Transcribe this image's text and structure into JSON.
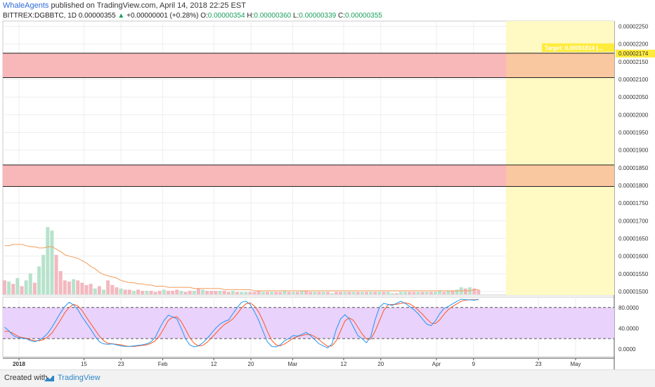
{
  "header": {
    "author": "WhaleAgents",
    "published": "published on TradingView.com, April 14, 2018 22:25 EST",
    "symbol": "BITTREX:DGBBTC, 1D",
    "last": "0.00000355",
    "change_arrow": "▲",
    "change": "+0.00000001 (+0.28%)",
    "o_label": "O:",
    "o_value": "0.00000354",
    "h_label": "H:",
    "h_value": "0.00000360",
    "l_label": "L:",
    "l_value": "0.00000339",
    "c_label": "C:",
    "c_value": "0.00000355"
  },
  "footer": {
    "created_with": "Created with",
    "brand": "TradingView"
  },
  "chart_data": {
    "type": "bar",
    "price_axis": {
      "ticks": [
        "0.00002250",
        "0.00002200",
        "0.00002150",
        "0.00002100",
        "0.00002050",
        "0.00002000",
        "0.00001950",
        "0.00001900",
        "0.00001850",
        "0.00001800",
        "0.00001750",
        "0.00001700",
        "0.00001650",
        "0.00001600",
        "0.00001550",
        "0.00001500"
      ],
      "range": [
        1.49e-05,
        2.265e-05
      ]
    },
    "zones": [
      {
        "name": "upper-resistance",
        "from": 2.105e-05,
        "to": 2.174e-05,
        "color": "#f8b7b9"
      },
      {
        "name": "lower-resistance",
        "from": 1.797e-05,
        "to": 1.858e-05,
        "color": "#f8b7b9"
      }
    ],
    "target_label": "Target: 0.00001814 (...",
    "price_marker": "0.00002174",
    "projection": {
      "from_date": "2018-04-16",
      "color": "#fff9c4"
    },
    "volume": {
      "bars": [
        12,
        11,
        9,
        14,
        7,
        12,
        18,
        10,
        24,
        34,
        58,
        55,
        34,
        20,
        12,
        11,
        13,
        12,
        10,
        8,
        9,
        5,
        7,
        4,
        12,
        8,
        6,
        5,
        4,
        4,
        3,
        4,
        3,
        3,
        3,
        2,
        3,
        4,
        3,
        3,
        4,
        3,
        2,
        3,
        3,
        5,
        4,
        3,
        3,
        3,
        3,
        3,
        2,
        3,
        2,
        2,
        2,
        2,
        2,
        3,
        2,
        2,
        2,
        2,
        2,
        3,
        2,
        2,
        2,
        3,
        3,
        2,
        2,
        2,
        2,
        2,
        1,
        2,
        2,
        2,
        2,
        2,
        2,
        2,
        2,
        2,
        2,
        2,
        2,
        2,
        1,
        1,
        2,
        2,
        2,
        2,
        2,
        2,
        2,
        2,
        2,
        3,
        2,
        3,
        3,
        4,
        6,
        5,
        6,
        5,
        4
      ],
      "bar_colors": [
        "red",
        "green",
        "red",
        "green",
        "red",
        "green",
        "green",
        "red",
        "green",
        "green",
        "green",
        "green",
        "red",
        "red",
        "red",
        "red",
        "green",
        "red",
        "red",
        "red",
        "red",
        "green",
        "red",
        "green",
        "red",
        "red",
        "red",
        "green",
        "red",
        "red",
        "green",
        "red",
        "red",
        "green",
        "red",
        "red",
        "red",
        "green",
        "red",
        "red",
        "red",
        "green",
        "red",
        "red",
        "green",
        "red",
        "green",
        "red",
        "red",
        "red",
        "green",
        "red",
        "red",
        "green",
        "red",
        "green",
        "green",
        "red",
        "red",
        "red",
        "green",
        "red",
        "green",
        "red",
        "red",
        "green",
        "red",
        "green",
        "red",
        "green",
        "red",
        "red",
        "green",
        "red",
        "green",
        "red",
        "green",
        "red",
        "red",
        "green",
        "red",
        "green",
        "red",
        "green",
        "red",
        "green",
        "red",
        "green",
        "red",
        "green",
        "green",
        "red",
        "green",
        "green",
        "red",
        "red",
        "green",
        "red",
        "green",
        "red",
        "green",
        "green",
        "red",
        "green",
        "red",
        "green",
        "green",
        "red",
        "green",
        "red",
        "red"
      ],
      "ma": [
        42,
        42,
        43,
        43,
        43,
        42,
        41,
        41,
        40,
        40,
        41,
        41,
        39,
        37,
        34,
        33,
        32,
        31,
        29,
        27,
        24,
        22,
        19,
        17,
        16,
        15,
        14,
        12,
        11,
        10,
        10,
        9,
        9,
        8,
        8,
        7,
        7,
        7,
        6,
        6,
        6,
        6,
        6,
        6,
        5,
        5,
        5,
        5,
        5,
        5,
        5,
        4,
        4,
        4,
        4,
        4,
        4,
        4,
        3,
        3,
        3,
        3,
        3,
        3,
        3,
        3,
        3,
        3,
        3,
        3,
        3,
        3,
        3,
        3,
        3,
        3,
        3,
        3,
        3,
        3,
        3,
        3,
        3,
        3,
        3,
        3,
        3,
        3,
        3,
        3,
        3,
        3,
        3,
        3,
        3,
        3,
        3,
        3,
        3,
        3,
        3,
        3,
        3,
        3,
        3,
        3,
        3,
        3,
        3,
        4,
        4
      ]
    },
    "stoch_rsi": {
      "ticks": [
        "80.0000",
        "40.0000",
        "0.0000"
      ],
      "range": [
        -15,
        100
      ],
      "bands": [
        20,
        80
      ],
      "k": [
        42,
        35,
        26,
        22,
        21,
        20,
        16,
        14,
        17,
        22,
        30,
        42,
        56,
        70,
        82,
        90,
        85,
        76,
        62,
        50,
        38,
        25,
        14,
        10,
        9,
        10,
        8,
        6,
        5,
        5,
        6,
        7,
        8,
        10,
        14,
        23,
        40,
        55,
        65,
        62,
        58,
        40,
        20,
        8,
        4,
        6,
        12,
        20,
        30,
        40,
        48,
        53,
        56,
        68,
        80,
        90,
        92,
        86,
        72,
        55,
        34,
        14,
        5,
        4,
        8,
        16,
        20,
        26,
        25,
        28,
        32,
        26,
        18,
        10,
        6,
        2,
        10,
        38,
        58,
        66,
        58,
        42,
        26,
        20,
        12,
        24,
        56,
        80,
        88,
        86,
        84,
        88,
        92,
        88,
        82,
        76,
        68,
        58,
        48,
        45,
        54,
        68,
        78,
        82,
        87,
        92,
        96,
        95,
        95,
        94,
        96
      ],
      "d": [
        34,
        34,
        30,
        25,
        22,
        21,
        18,
        16,
        16,
        18,
        23,
        31,
        43,
        56,
        70,
        80,
        86,
        83,
        74,
        61,
        49,
        37,
        25,
        16,
        11,
        10,
        9,
        8,
        6,
        5,
        5,
        6,
        7,
        8,
        11,
        16,
        26,
        40,
        55,
        61,
        62,
        53,
        38,
        22,
        11,
        6,
        7,
        13,
        21,
        30,
        39,
        47,
        52,
        58,
        68,
        79,
        87,
        89,
        83,
        71,
        54,
        34,
        17,
        8,
        6,
        10,
        15,
        21,
        24,
        26,
        28,
        28,
        24,
        18,
        11,
        5,
        6,
        16,
        35,
        54,
        60,
        55,
        42,
        29,
        19,
        19,
        34,
        54,
        74,
        85,
        86,
        86,
        88,
        89,
        87,
        82,
        75,
        67,
        58,
        50,
        49,
        56,
        67,
        76,
        82,
        87,
        92,
        94,
        95,
        95,
        95
      ]
    },
    "time_axis": {
      "labels": [
        "2018",
        "15",
        "23",
        "Feb",
        "12",
        "20",
        "Mar",
        "12",
        "20",
        "Apr",
        "9",
        "23",
        "May"
      ],
      "label_dates": [
        "2018-01-01",
        "2018-01-15",
        "2018-01-23",
        "2018-02-01",
        "2018-02-12",
        "2018-02-20",
        "2018-03-01",
        "2018-03-12",
        "2018-03-20",
        "2018-04-01",
        "2018-04-09",
        "2018-04-23",
        "2018-05-01"
      ]
    },
    "colors": {
      "k": "#2196f3",
      "d": "#ff5722",
      "volume_ma": "#f39c5a",
      "green": "#b7e2cc",
      "red": "#f3b8bf",
      "stoch_fill": "#e9d2fb"
    }
  }
}
